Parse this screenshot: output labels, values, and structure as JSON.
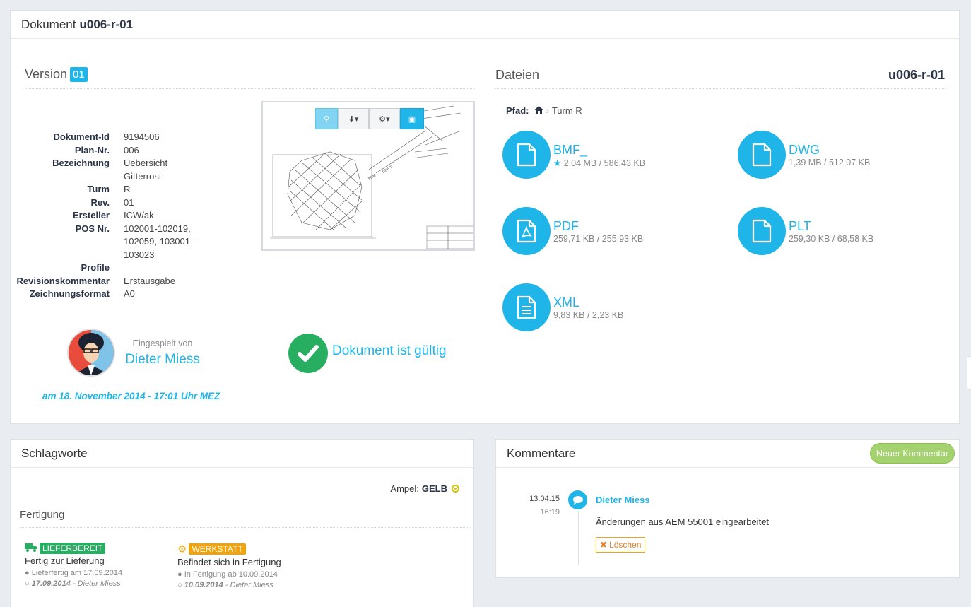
{
  "document": {
    "title_prefix": "Dokument",
    "title_id": "u006-r-01",
    "version_label": "Version",
    "version_number": "01",
    "meta": [
      {
        "key": "Dokument-Id",
        "value": "9194506"
      },
      {
        "key": "Plan-Nr.",
        "value": "006"
      },
      {
        "key": "Bezeichnung",
        "value": "Uebersicht Gitterrost"
      },
      {
        "key": "Turm",
        "value": "R"
      },
      {
        "key": "Rev.",
        "value": "01"
      },
      {
        "key": "Ersteller",
        "value": "ICW/ak"
      },
      {
        "key": "POS Nr.",
        "value": "102001-102019, 102059, 103001-103023"
      },
      {
        "key": "Profile",
        "value": ""
      },
      {
        "key": "Revisionskommentar",
        "value": "Erstausgabe"
      },
      {
        "key": "Zeichnungsformat",
        "value": "A0"
      }
    ],
    "uploaded_by_label": "Eingespielt von",
    "uploaded_by_name": "Dieter Miess",
    "uploaded_date": "am 18. November 2014 - 17:01 Uhr MEZ",
    "valid_text": "Dokument ist gültig",
    "valid_color": "#27ae60"
  },
  "files": {
    "title": "Dateien",
    "doc_id": "u006-r-01",
    "path_label": "Pfad:",
    "path_folder": "Turm R",
    "items": [
      {
        "name": "BMF_",
        "size": "2,04 MB / 586,43 KB",
        "icon": "file-icon",
        "starred": true
      },
      {
        "name": "DWG",
        "size": "1,39 MB / 512,07 KB",
        "icon": "file-icon"
      },
      {
        "name": "PDF",
        "size": "259,71 KB / 255,93 KB",
        "icon": "pdf-file-icon"
      },
      {
        "name": "PLT",
        "size": "259,30 KB / 68,58 KB",
        "icon": "file-icon"
      },
      {
        "name": "XML",
        "size": "9,83 KB / 2,23 KB",
        "icon": "text-file-icon"
      }
    ],
    "accent": "#1fb5e8"
  },
  "keywords": {
    "title": "Schlagworte",
    "ampel_label": "Ampel:",
    "ampel_value": "GELB",
    "section": "Fertigung",
    "items": [
      {
        "tag": "LIEFERBEREIT",
        "tag_color": "#27ae60",
        "title": "Fertig zur Lieferung",
        "note": "Lieferfertig am 17.09.2014",
        "date": "17.09.2014",
        "author": "- Dieter Miess"
      },
      {
        "tag": "WERKSTATT",
        "tag_color": "#f0a30a",
        "title": "Befindet sich in Fertigung",
        "note": "In Fertigung ab 10.09.2014",
        "date": "10.09.2014",
        "author": "- Dieter Miess"
      }
    ]
  },
  "comments": {
    "title": "Kommentare",
    "new_button": "Neuer Kommentar",
    "items": [
      {
        "date": "13.04.15",
        "time": "16:19",
        "author": "Dieter Miess",
        "text": "Änderungen aus AEM 55001 eingearbeitet",
        "delete_label": "Löschen"
      }
    ]
  }
}
